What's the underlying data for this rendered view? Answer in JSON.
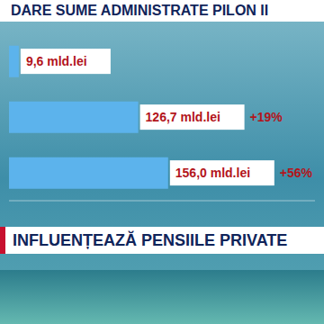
{
  "chart_data": {
    "type": "bar",
    "orientation": "horizontal",
    "title": "DARE SUME ADMINISTRATE PILON II",
    "subtitle": "INFLUENȚEAZĂ PENSIILE PRIVATE",
    "categories": [
      null,
      null,
      null
    ],
    "values": [
      9.6,
      126.7,
      156.0
    ],
    "value_labels": [
      "9,6 mld.lei",
      "126,7 mld.lei",
      "156,0 mld.lei"
    ],
    "annotations": [
      null,
      "+19%",
      "+56%"
    ],
    "color": "#5cb3ec",
    "xlim": [
      0,
      300
    ],
    "data_labels": true,
    "tick_labels": false,
    "grid": false
  }
}
